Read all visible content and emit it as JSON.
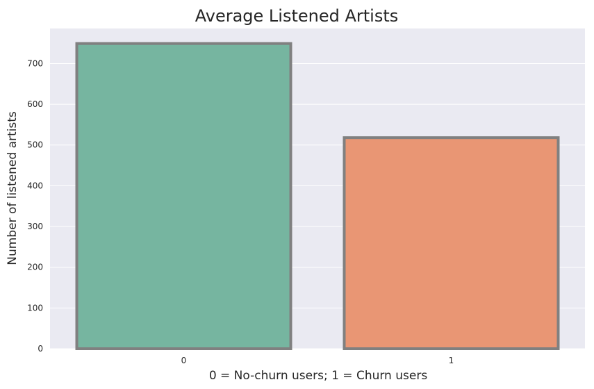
{
  "chart_data": {
    "type": "bar",
    "title": "Average Listened Artists",
    "xlabel": "0 = No-churn users; 1 = Churn users",
    "ylabel": "Number of listened artists",
    "categories": [
      "0",
      "1"
    ],
    "values": [
      749,
      518
    ],
    "ylim": [
      0,
      786
    ],
    "yticks": [
      0,
      100,
      200,
      300,
      400,
      500,
      600,
      700
    ],
    "grid": true,
    "colors": {
      "background": "#eaeaf2",
      "grid": "#ffffff",
      "bar_edge": "#808080",
      "bars": [
        "#76b5a0",
        "#e99674"
      ]
    }
  }
}
